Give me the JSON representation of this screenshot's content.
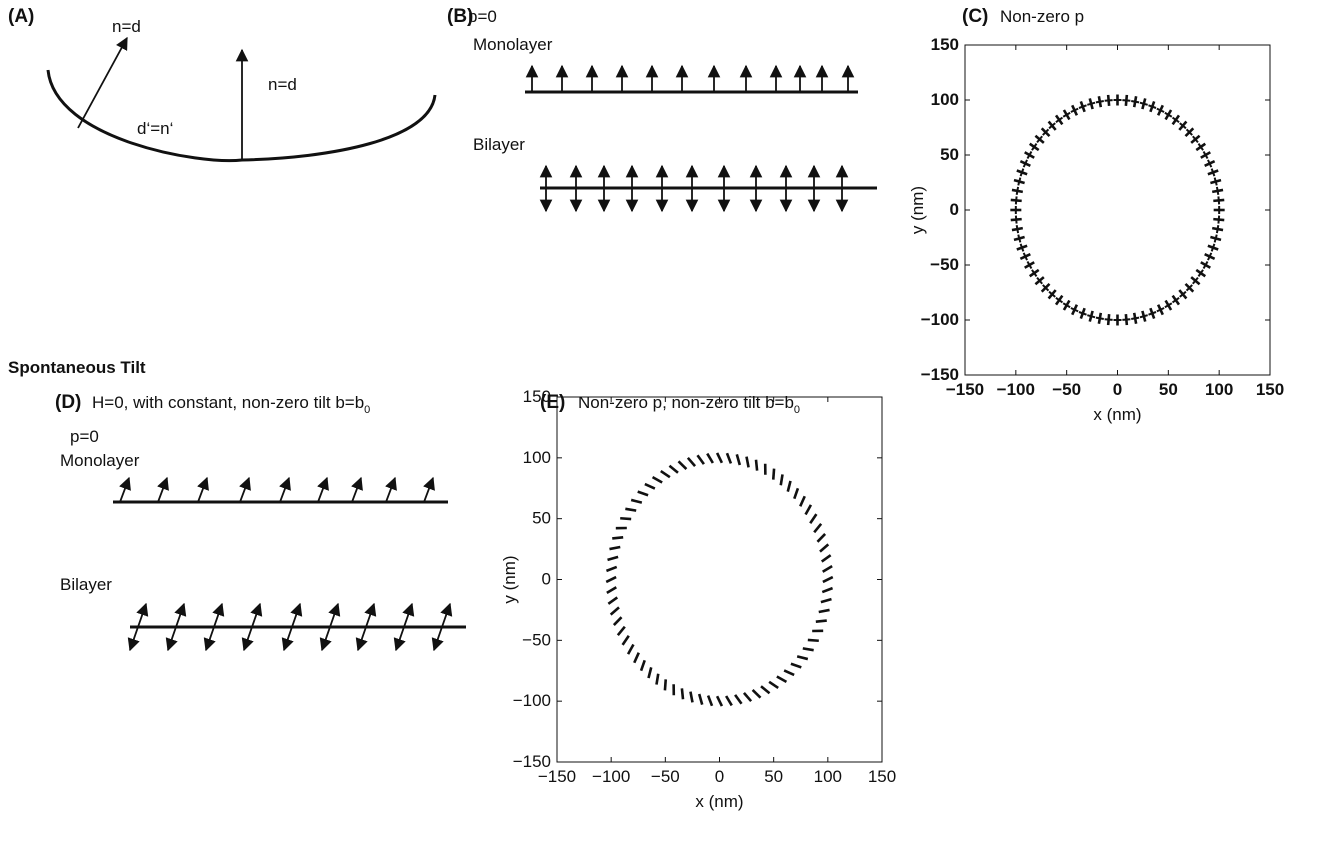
{
  "panel_a": {
    "label": "(A)",
    "normal_outer": "n=d",
    "normal_center": "n=d",
    "inner": "d‘=n‘"
  },
  "panel_b": {
    "label": "(B)",
    "title": "p=0",
    "monolayer": "Monolayer",
    "bilayer": "Bilayer"
  },
  "panel_c": {
    "label": "(C)",
    "title": "Non-zero p",
    "plot": {
      "xlabel": "x (nm)",
      "ylabel": "y (nm)",
      "xlim": [
        -150,
        150
      ],
      "ylim": [
        -150,
        150
      ],
      "xticks": [
        {
          "value": -150,
          "label": "−150"
        },
        {
          "value": -100,
          "label": "−100"
        },
        {
          "value": -50,
          "label": "−50"
        },
        0,
        50,
        100,
        150
      ],
      "yticks": [
        {
          "value": -150,
          "label": "−150"
        },
        {
          "value": -100,
          "label": "−100"
        },
        {
          "value": -50,
          "label": "−50"
        },
        0,
        50,
        100,
        150
      ],
      "radius": 100
    }
  },
  "section": "Spontaneous Tilt",
  "panel_d": {
    "label": "(D)",
    "title": "H=0, with constant, non-zero tilt b=b",
    "title_sub": "0",
    "p": "p=0",
    "monolayer": "Monolayer",
    "bilayer": "Bilayer"
  },
  "panel_e": {
    "label": "(E)",
    "title": "Non-zero p, non-zero tilt b=b",
    "title_sub": "0",
    "plot": {
      "xlabel": "x (nm)",
      "ylabel": "y (nm)",
      "xlim": [
        -150,
        150
      ],
      "ylim": [
        -150,
        150
      ],
      "xticks": [
        {
          "value": -150,
          "label": "−150"
        },
        {
          "value": -100,
          "label": "−100"
        },
        {
          "value": -50,
          "label": "−50"
        },
        0,
        50,
        100,
        150
      ],
      "yticks": [
        {
          "value": -150,
          "label": "−150"
        },
        {
          "value": -100,
          "label": "−100"
        },
        {
          "value": -50,
          "label": "−50"
        },
        0,
        50,
        100,
        150
      ],
      "radius": 100
    }
  }
}
